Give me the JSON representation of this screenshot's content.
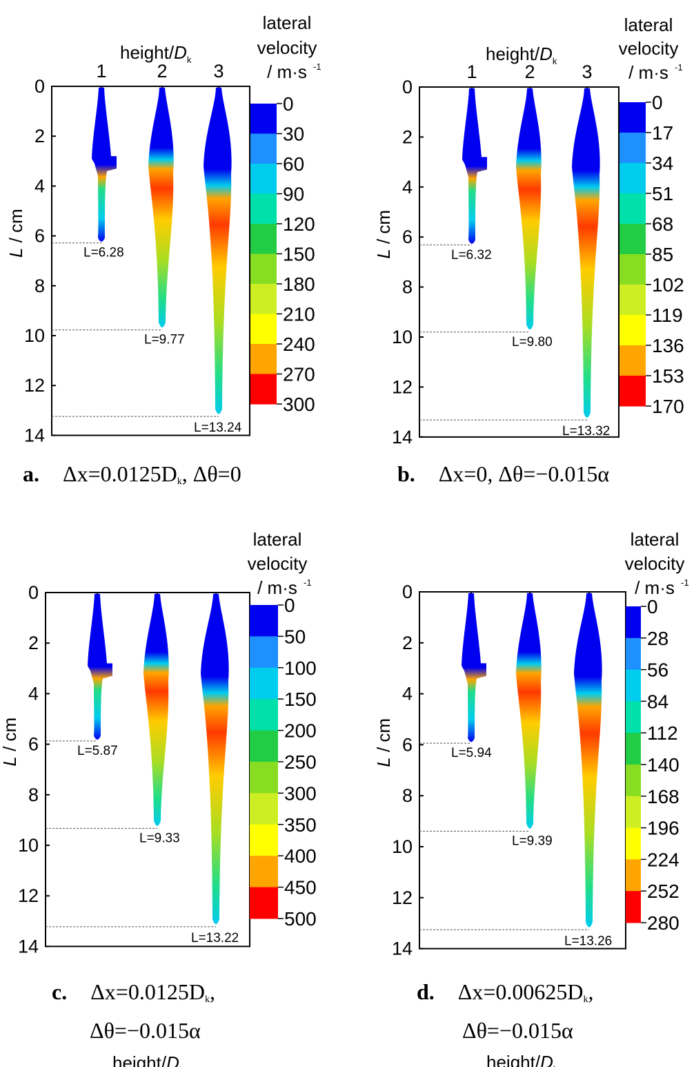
{
  "figure": {
    "height_label": "height/",
    "height_symbol": "D",
    "height_sub": "k",
    "y_label_var": "L",
    "y_label_unit": " / cm",
    "colorbar_title": [
      "lateral",
      "velocity",
      "/ m·s"
    ],
    "colorbar_exp": "-1",
    "height_ticks": [
      "1",
      "2",
      "3"
    ],
    "y_ticks": [
      "0",
      "2",
      "4",
      "6",
      "8",
      "10",
      "12",
      "14"
    ],
    "colors": [
      "#0000f0",
      "#1e90ff",
      "#00ccee",
      "#00e0aa",
      "#22cc44",
      "#88dd22",
      "#ccee22",
      "#ffff00",
      "#ffa500",
      "#ff0000"
    ]
  },
  "panels": [
    {
      "id": "a",
      "caption_letter": "a.",
      "caption_line1": "Δx=0.0125D",
      "caption_line1_sub": "k",
      "caption_line1_tail": ", Δθ=0",
      "caption_line2": "",
      "colorbar_ticks": [
        "0",
        "30",
        "60",
        "90",
        "120",
        "150",
        "180",
        "210",
        "240",
        "270",
        "300"
      ],
      "lengths": [
        {
          "text": "L=6.28",
          "value": 6.28
        },
        {
          "text": "L=9.77",
          "value": 9.77
        },
        {
          "text": "L=13.24",
          "value": 13.24
        }
      ]
    },
    {
      "id": "b",
      "caption_letter": "b.",
      "caption_line1": "Δx=0, Δθ=−0.015α",
      "caption_line1_sub": "",
      "caption_line1_tail": "",
      "caption_line2": "",
      "colorbar_ticks": [
        "0",
        "17",
        "34",
        "51",
        "68",
        "85",
        "102",
        "119",
        "136",
        "153",
        "170"
      ],
      "lengths": [
        {
          "text": "L=6.32",
          "value": 6.32
        },
        {
          "text": "L=9.80",
          "value": 9.8
        },
        {
          "text": "L=13.32",
          "value": 13.32
        }
      ]
    },
    {
      "id": "c",
      "caption_letter": "c.",
      "caption_line1": "Δx=0.0125D",
      "caption_line1_sub": "k",
      "caption_line1_tail": ",",
      "caption_line2": "Δθ=−0.015α",
      "colorbar_ticks": [
        "0",
        "50",
        "100",
        "150",
        "200",
        "250",
        "300",
        "350",
        "400",
        "450",
        "500"
      ],
      "lengths": [
        {
          "text": "L=5.87",
          "value": 5.87
        },
        {
          "text": "L=9.33",
          "value": 9.33
        },
        {
          "text": "L=13.22",
          "value": 13.22
        }
      ]
    },
    {
      "id": "d",
      "caption_letter": "d.",
      "caption_line1": "Δx=0.00625D",
      "caption_line1_sub": "k",
      "caption_line1_tail": ",",
      "caption_line2": "Δθ=−0.015α",
      "colorbar_ticks": [
        "0",
        "28",
        "56",
        "84",
        "112",
        "140",
        "168",
        "196",
        "224",
        "252",
        "280"
      ],
      "lengths": [
        {
          "text": "L=5.94",
          "value": 5.94
        },
        {
          "text": "L=9.39",
          "value": 9.39
        },
        {
          "text": "L=13.26",
          "value": 13.26
        }
      ]
    }
  ]
}
